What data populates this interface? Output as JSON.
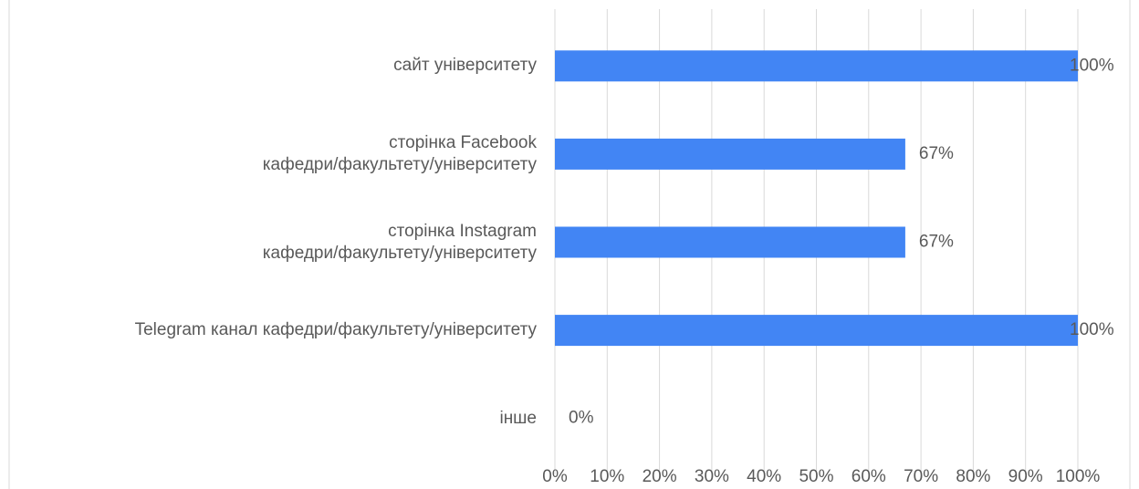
{
  "chart_data": {
    "type": "bar",
    "orientation": "horizontal",
    "categories": [
      "сайт університету",
      "сторінка Facebook\nкафедри/факультету/університету",
      "сторінка Instagram\nкафедри/факультету/університету",
      "Telegram канал кафедри/факультету/університету",
      "інше"
    ],
    "values": [
      100,
      67,
      67,
      100,
      0
    ],
    "value_labels": [
      "100%",
      "67%",
      "67%",
      "100%",
      "0%"
    ],
    "color": "#4285f4",
    "xlim": [
      0,
      100
    ],
    "xticks": [
      {
        "value": 0,
        "label": "0%"
      },
      {
        "value": 10,
        "label": "10%"
      },
      {
        "value": 20,
        "label": "20%"
      },
      {
        "value": 30,
        "label": "30%"
      },
      {
        "value": 40,
        "label": "40%"
      },
      {
        "value": 50,
        "label": "50%"
      },
      {
        "value": 60,
        "label": "60%"
      },
      {
        "value": 70,
        "label": "70%"
      },
      {
        "value": 80,
        "label": "80%"
      },
      {
        "value": 90,
        "label": "90%"
      },
      {
        "value": 100,
        "label": "100%"
      }
    ],
    "grid": true
  }
}
